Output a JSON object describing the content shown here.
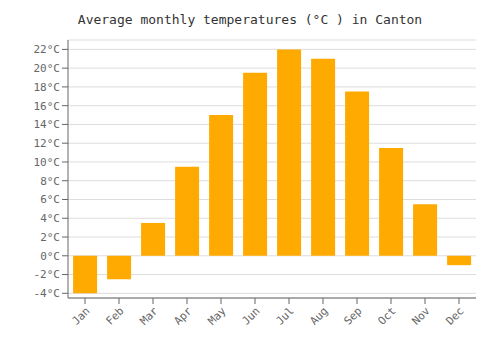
{
  "chart_data": {
    "type": "bar",
    "title": "Average monthly temperatures (°C ) in Canton",
    "categories": [
      "Jan",
      "Feb",
      "Mar",
      "Apr",
      "May",
      "Jun",
      "Jul",
      "Aug",
      "Sep",
      "Oct",
      "Nov",
      "Dec"
    ],
    "values": [
      -4.0,
      -2.5,
      3.5,
      9.5,
      15.0,
      19.5,
      22.0,
      21.0,
      17.5,
      11.5,
      5.5,
      -1.0
    ],
    "color": "#FFAA00",
    "ylim": [
      -4.5,
      23.0
    ],
    "yticks": [
      {
        "value": -4,
        "label": "-4°C"
      },
      {
        "value": -2,
        "label": "-2°C"
      },
      {
        "value": 0,
        "label": "0°C"
      },
      {
        "value": 2,
        "label": "2°C"
      },
      {
        "value": 4,
        "label": "4°C"
      },
      {
        "value": 6,
        "label": "6°C"
      },
      {
        "value": 8,
        "label": "8°C"
      },
      {
        "value": 10,
        "label": "10°C"
      },
      {
        "value": 12,
        "label": "12°C"
      },
      {
        "value": 14,
        "label": "14°C"
      },
      {
        "value": 16,
        "label": "16°C"
      },
      {
        "value": 18,
        "label": "18°C"
      },
      {
        "value": 20,
        "label": "20°C"
      },
      {
        "value": 22,
        "label": "22°C"
      }
    ],
    "grid": true
  }
}
